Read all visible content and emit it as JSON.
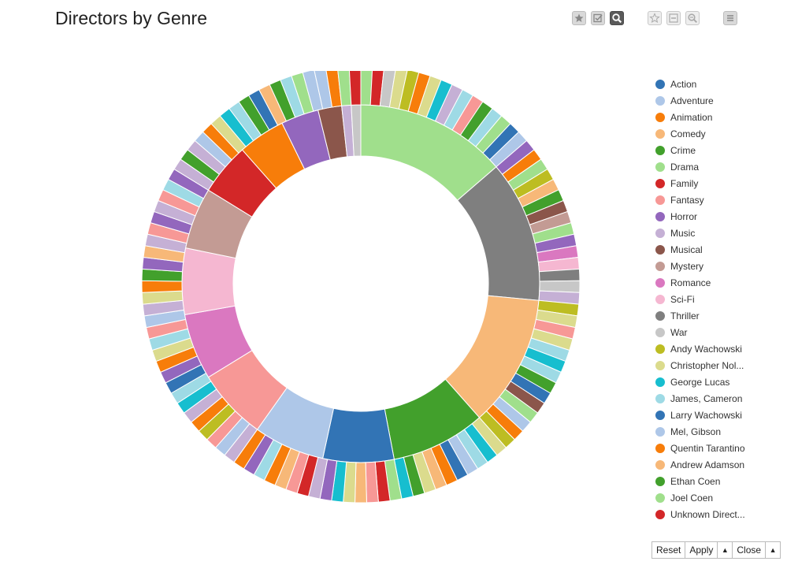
{
  "header": {
    "title": "Directors by Genre"
  },
  "toolbar": [
    {
      "id": "star",
      "icon": "star-icon",
      "state": "normal"
    },
    {
      "id": "check",
      "icon": "checkbox-icon",
      "state": "normal"
    },
    {
      "id": "search",
      "icon": "search-icon",
      "state": "active"
    },
    {
      "id": "star2",
      "icon": "star-outline-icon",
      "state": "light"
    },
    {
      "id": "minus",
      "icon": "minus-box-icon",
      "state": "light"
    },
    {
      "id": "zoom",
      "icon": "zoom-out-icon",
      "state": "light"
    },
    {
      "id": "menu",
      "icon": "menu-icon",
      "state": "normal"
    }
  ],
  "footer": {
    "reset": "Reset",
    "apply": "Apply",
    "close": "Close"
  },
  "chart_data": {
    "type": "pie",
    "subtype": "sunburst-donut",
    "title": "Directors by Genre",
    "legend_position": "right",
    "legend": [
      {
        "label": "Action",
        "color": "#3274b5"
      },
      {
        "label": "Adventure",
        "color": "#aec7e8"
      },
      {
        "label": "Animation",
        "color": "#f77d0a"
      },
      {
        "label": "Comedy",
        "color": "#f7b878"
      },
      {
        "label": "Crime",
        "color": "#42a02c"
      },
      {
        "label": "Drama",
        "color": "#a0df8c"
      },
      {
        "label": "Family",
        "color": "#d32728"
      },
      {
        "label": "Fantasy",
        "color": "#f79896"
      },
      {
        "label": "Horror",
        "color": "#9367bd"
      },
      {
        "label": "Music",
        "color": "#c5b0d5"
      },
      {
        "label": "Musical",
        "color": "#8b564b"
      },
      {
        "label": "Mystery",
        "color": "#c39b94"
      },
      {
        "label": "Romance",
        "color": "#da78c0"
      },
      {
        "label": "Sci-Fi",
        "color": "#f5b7d1"
      },
      {
        "label": "Thriller",
        "color": "#7f7f7f"
      },
      {
        "label": "War",
        "color": "#c7c7c7"
      },
      {
        "label": "Andy Wachowski",
        "color": "#bdbd22"
      },
      {
        "label": "Christopher Nol...",
        "color": "#dbdb8d"
      },
      {
        "label": "George Lucas",
        "color": "#17becf"
      },
      {
        "label": "James, Cameron",
        "color": "#9edae5"
      },
      {
        "label": "Larry Wachowski",
        "color": "#3274b5"
      },
      {
        "label": "Mel, Gibson",
        "color": "#aec7e8"
      },
      {
        "label": "Quentin Tarantino",
        "color": "#f77d0a"
      },
      {
        "label": "Andrew Adamson",
        "color": "#f7b878"
      },
      {
        "label": "Ethan Coen",
        "color": "#42a02c"
      },
      {
        "label": "Joel Coen",
        "color": "#a0df8c"
      },
      {
        "label": "Unknown Direct...",
        "color": "#d32728"
      }
    ],
    "inner_ring": [
      {
        "genre": "Drama",
        "value": 16,
        "color": "#a0df8c"
      },
      {
        "genre": "Thriller",
        "value": 15,
        "color": "#7f7f7f"
      },
      {
        "genre": "Comedy",
        "value": 14,
        "color": "#f7b878"
      },
      {
        "genre": "Crime",
        "value": 10,
        "color": "#42a02c"
      },
      {
        "genre": "Action",
        "value": 7.5,
        "color": "#3274b5"
      },
      {
        "genre": "Adventure",
        "value": 7.5,
        "color": "#aec7e8"
      },
      {
        "genre": "Fantasy",
        "value": 7.5,
        "color": "#f79896"
      },
      {
        "genre": "Romance",
        "value": 7,
        "color": "#da78c0"
      },
      {
        "genre": "Sci-Fi",
        "value": 7,
        "color": "#f5b7d1"
      },
      {
        "genre": "Mystery",
        "value": 6.5,
        "color": "#c39b94"
      },
      {
        "genre": "Family",
        "value": 5.5,
        "color": "#d32728"
      },
      {
        "genre": "Animation",
        "value": 5,
        "color": "#f77d0a"
      },
      {
        "genre": "Horror",
        "value": 4,
        "color": "#9367bd"
      },
      {
        "genre": "Musical",
        "value": 2.5,
        "color": "#8b564b"
      },
      {
        "genre": "Music",
        "value": 1,
        "color": "#c5b0d5"
      },
      {
        "genre": "War",
        "value": 1,
        "color": "#c7c7c7"
      }
    ],
    "outer_ring": [
      "#a0df8c",
      "#d32728",
      "#c7c7c7",
      "#dbdb8d",
      "#bdbd22",
      "#f77d0a",
      "#dbdb8d",
      "#17becf",
      "#c5b0d5",
      "#9edae5",
      "#f79896",
      "#42a02c",
      "#9edae5",
      "#a0df8c",
      "#3274b5",
      "#aec7e8",
      "#9367bd",
      "#f77d0a",
      "#a0df8c",
      "#bdbd22",
      "#f7b878",
      "#42a02c",
      "#8b564b",
      "#c39b94",
      "#a0df8c",
      "#9367bd",
      "#da78c0",
      "#f5b7d1",
      "#7f7f7f",
      "#c7c7c7",
      "#c5b0d5",
      "#bdbd22",
      "#dbdb8d",
      "#f79896",
      "#dbdb8d",
      "#9edae5",
      "#17becf",
      "#9edae5",
      "#42a02c",
      "#3274b5",
      "#8b564b",
      "#a0df8c",
      "#aec7e8",
      "#f77d0a",
      "#bdbd22",
      "#dbdb8d",
      "#17becf",
      "#9edae5",
      "#aec7e8",
      "#3274b5",
      "#f77d0a",
      "#f7b878",
      "#dbdb8d",
      "#42a02c",
      "#17becf",
      "#a0df8c",
      "#d32728",
      "#f79896",
      "#f7b878",
      "#dbdb8d",
      "#17becf",
      "#9367bd",
      "#c5b0d5",
      "#d32728",
      "#f79896",
      "#f7b878",
      "#f77d0a",
      "#9edae5",
      "#9367bd",
      "#f77d0a",
      "#c5b0d5",
      "#aec7e8",
      "#f79896",
      "#bdbd22",
      "#f77d0a",
      "#c5b0d5",
      "#17becf",
      "#9edae5",
      "#3274b5",
      "#9367bd",
      "#f77d0a",
      "#dbdb8d",
      "#9edae5",
      "#f79896",
      "#aec7e8",
      "#c5b0d5",
      "#dbdb8d",
      "#f77d0a",
      "#42a02c",
      "#9367bd",
      "#f7b878",
      "#c5b0d5",
      "#f79896",
      "#9367bd",
      "#c5b0d5",
      "#f79896",
      "#9edae5",
      "#9367bd",
      "#c5b0d5",
      "#42a02c",
      "#c5b0d5",
      "#aec7e8",
      "#f77d0a",
      "#dbdb8d",
      "#17becf",
      "#9edae5",
      "#42a02c",
      "#3274b5",
      "#f7b878",
      "#42a02c",
      "#9edae5",
      "#a0df8c",
      "#aec7e8",
      "#aec7e8",
      "#f77d0a",
      "#a0df8c",
      "#d32728"
    ]
  }
}
